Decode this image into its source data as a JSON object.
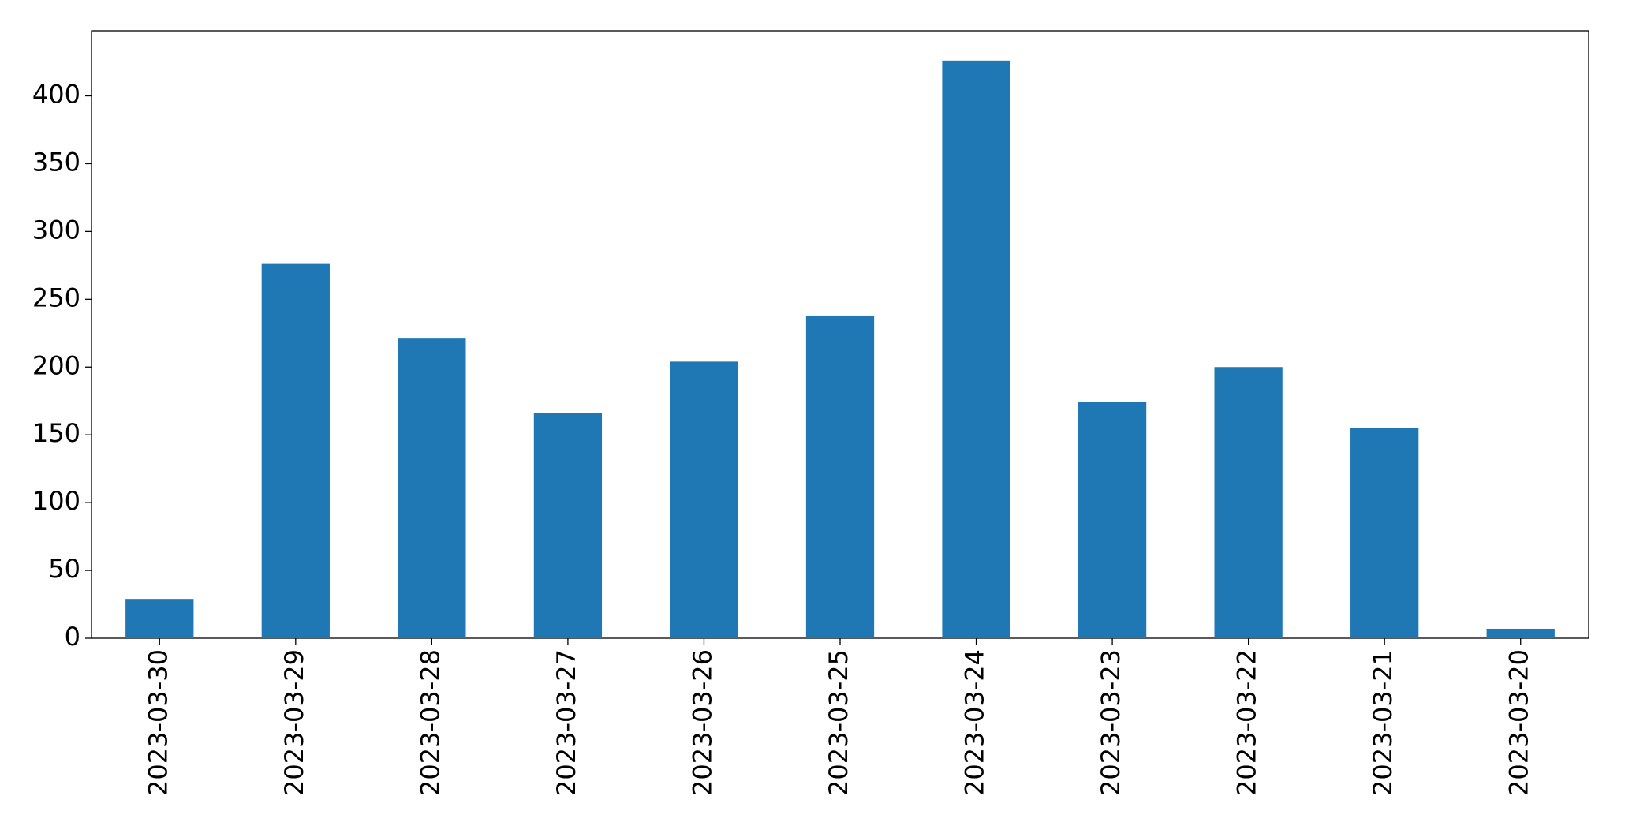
{
  "chart_data": {
    "type": "bar",
    "categories": [
      "2023-03-30",
      "2023-03-29",
      "2023-03-28",
      "2023-03-27",
      "2023-03-26",
      "2023-03-25",
      "2023-03-24",
      "2023-03-23",
      "2023-03-22",
      "2023-03-21",
      "2023-03-20"
    ],
    "values": [
      29,
      276,
      221,
      166,
      204,
      238,
      426,
      174,
      200,
      155,
      7
    ],
    "color": "#1f77b4",
    "ylim": [
      0,
      448
    ],
    "yticks": [
      0,
      50,
      100,
      150,
      200,
      250,
      300,
      350,
      400
    ],
    "grid": false
  }
}
